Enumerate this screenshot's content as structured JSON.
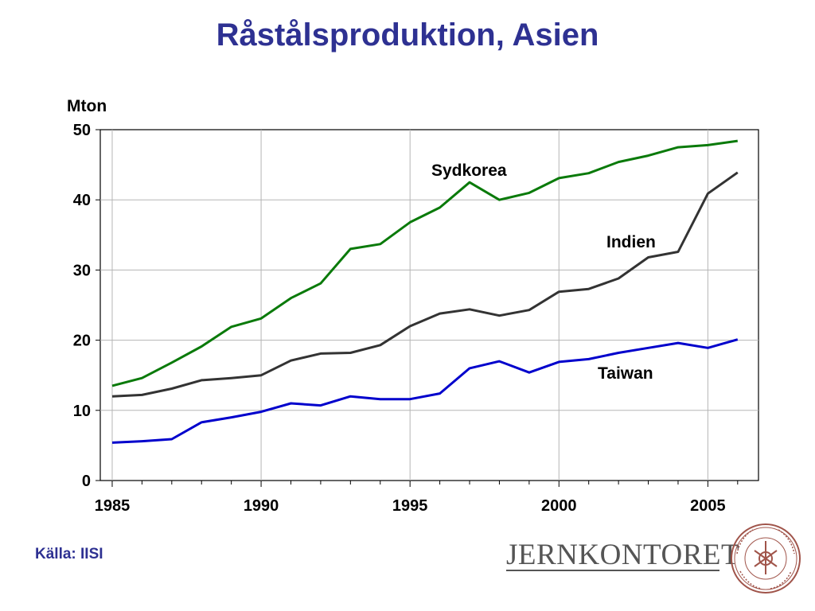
{
  "title": "Råstålsproduktion, Asien",
  "source": "Källa: IISI",
  "logo": {
    "text": "JERNKONTORET",
    "seal_text": "JERN CONTOIRETS SIGILL"
  },
  "colors": {
    "title": "#2e3192",
    "sydkorea": "#0a7a0a",
    "indien": "#333333",
    "taiwan": "#0000cc"
  },
  "chart_data": {
    "type": "line",
    "ylabel": "Mton",
    "xlim": [
      1984.6,
      2006.7
    ],
    "ylim": [
      0,
      50
    ],
    "x_ticks": [
      1985,
      1990,
      1995,
      2000,
      2005
    ],
    "y_ticks": [
      0,
      10,
      20,
      30,
      40,
      50
    ],
    "grid": true,
    "x": [
      1985,
      1986,
      1987,
      1988,
      1989,
      1990,
      1991,
      1992,
      1993,
      1994,
      1995,
      1996,
      1997,
      1998,
      1999,
      2000,
      2001,
      2002,
      2003,
      2004,
      2005,
      2006
    ],
    "series": [
      {
        "name": "Sydkorea",
        "color": "#0a7a0a",
        "values": [
          13.5,
          14.6,
          16.8,
          19.1,
          21.9,
          23.1,
          26.0,
          28.1,
          33.0,
          33.7,
          36.8,
          38.9,
          42.5,
          40.0,
          41.0,
          43.1,
          43.8,
          45.4,
          46.3,
          47.5,
          47.8,
          48.4
        ]
      },
      {
        "name": "Indien",
        "color": "#333333",
        "values": [
          12.0,
          12.2,
          13.1,
          14.3,
          14.6,
          15.0,
          17.1,
          18.1,
          18.2,
          19.3,
          22.0,
          23.8,
          24.4,
          23.5,
          24.3,
          26.9,
          27.3,
          28.8,
          31.8,
          32.6,
          40.9,
          43.9
        ]
      },
      {
        "name": "Taiwan",
        "color": "#0000cc",
        "values": [
          5.4,
          5.6,
          5.9,
          8.3,
          9.0,
          9.8,
          11.0,
          10.7,
          12.0,
          11.6,
          11.6,
          12.4,
          16.0,
          17.0,
          15.4,
          16.9,
          17.3,
          18.2,
          18.9,
          19.6,
          18.9,
          20.1
        ]
      }
    ]
  }
}
